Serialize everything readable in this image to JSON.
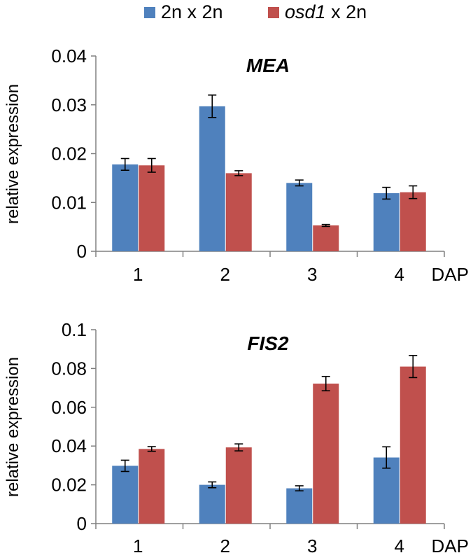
{
  "legend": [
    {
      "label_italic": "",
      "label_rest": "2n x 2n",
      "color": "#4F81BD"
    },
    {
      "label_italic": "osd1",
      "label_rest": " x 2n",
      "color": "#C0504D"
    }
  ],
  "chart_data": [
    {
      "type": "bar",
      "title": "MEA",
      "ylabel": "relative expression",
      "xlabel": "DAP",
      "categories": [
        "1",
        "2",
        "3",
        "4"
      ],
      "ylim": [
        0,
        0.04
      ],
      "yticks": [
        "0",
        "0.01",
        "0.02",
        "0.03",
        "0.04"
      ],
      "series": [
        {
          "name": "2n x 2n",
          "color": "#4F81BD",
          "values": [
            0.0178,
            0.0297,
            0.014,
            0.0119
          ],
          "errors": [
            0.0012,
            0.0023,
            0.0006,
            0.0012
          ]
        },
        {
          "name": "osd1 x 2n",
          "color": "#C0504D",
          "values": [
            0.0176,
            0.016,
            0.0053,
            0.0121
          ],
          "errors": [
            0.0014,
            0.0005,
            0.0002,
            0.0013
          ]
        }
      ],
      "grid": false,
      "legend_position": "top"
    },
    {
      "type": "bar",
      "title": "FIS2",
      "ylabel": "relative expression",
      "xlabel": "DAP",
      "categories": [
        "1",
        "2",
        "3",
        "4"
      ],
      "ylim": [
        0,
        0.1
      ],
      "yticks": [
        "0",
        "0.02",
        "0.04",
        "0.06",
        "0.08",
        "0.1"
      ],
      "series": [
        {
          "name": "2n x 2n",
          "color": "#4F81BD",
          "values": [
            0.0298,
            0.02,
            0.0182,
            0.0341
          ],
          "errors": [
            0.0029,
            0.0015,
            0.0013,
            0.0055
          ]
        },
        {
          "name": "osd1 x 2n",
          "color": "#C0504D",
          "values": [
            0.0385,
            0.0393,
            0.0722,
            0.081
          ],
          "errors": [
            0.0012,
            0.0018,
            0.0037,
            0.0057
          ]
        }
      ],
      "grid": false,
      "legend_position": "top"
    }
  ]
}
